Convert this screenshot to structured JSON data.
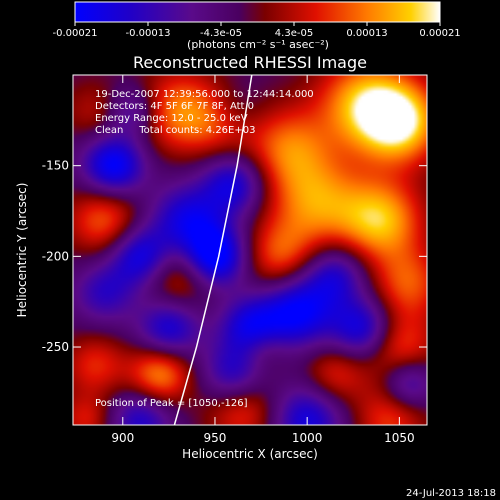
{
  "colorbar": {
    "ticks": [
      "-0.00021",
      "-0.00013",
      "-4.3e-05",
      "4.3e-05",
      "0.00013",
      "0.00021"
    ],
    "units": "(photons cm⁻² s⁻¹ asec⁻²)",
    "min": -0.00021,
    "max": 0.00021
  },
  "chart_data": {
    "type": "heatmap",
    "title": "Reconstructed RHESSI Image",
    "xlabel": "Heliocentric X (arcsec)",
    "ylabel": "Heliocentric Y (arcsec)",
    "xlim": [
      873,
      1065
    ],
    "ylim": [
      -293,
      -100
    ],
    "xticks": [
      900,
      950,
      1000,
      1050
    ],
    "yticks": [
      -150,
      -200,
      -250
    ],
    "annotations": [
      "19-Dec-2007 12:39:56.000 to 12:44:14.000",
      "Detectors: 4F 5F 6F 7F 8F, Att 0",
      "Energy Range: 12.0 - 25.0 keV",
      "Clean     Total counts: 4.26E+03"
    ],
    "peak_label": "Position of Peak = [1050,-126]",
    "peak": [
      1050,
      -126
    ],
    "limb_curve": [
      [
        928,
        -293
      ],
      [
        940,
        -250
      ],
      [
        952,
        -200
      ],
      [
        962,
        -150
      ],
      [
        970,
        -100
      ]
    ],
    "blobs": [
      {
        "x": 1050,
        "y": -126,
        "v": 1.0,
        "s": 16
      },
      {
        "x": 1030,
        "y": -115,
        "v": 0.75,
        "s": 18
      },
      {
        "x": 1040,
        "y": -180,
        "v": 0.85,
        "s": 16
      },
      {
        "x": 1005,
        "y": -170,
        "v": 0.7,
        "s": 18
      },
      {
        "x": 990,
        "y": -140,
        "v": 0.6,
        "s": 16
      },
      {
        "x": 985,
        "y": -200,
        "v": 0.55,
        "s": 14
      },
      {
        "x": 1055,
        "y": -215,
        "v": 0.55,
        "s": 14
      },
      {
        "x": 1050,
        "y": -250,
        "v": 0.55,
        "s": 14
      },
      {
        "x": 1015,
        "y": -265,
        "v": 0.45,
        "s": 12
      },
      {
        "x": 1045,
        "y": -290,
        "v": 0.5,
        "s": 14
      },
      {
        "x": 930,
        "y": -120,
        "v": 0.65,
        "s": 16
      },
      {
        "x": 955,
        "y": -125,
        "v": 0.55,
        "s": 14
      },
      {
        "x": 890,
        "y": -180,
        "v": 0.6,
        "s": 14
      },
      {
        "x": 930,
        "y": -210,
        "v": 0.5,
        "s": 14
      },
      {
        "x": 920,
        "y": -265,
        "v": 0.75,
        "s": 12
      },
      {
        "x": 885,
        "y": -260,
        "v": 0.45,
        "s": 12
      },
      {
        "x": 965,
        "y": -285,
        "v": 0.5,
        "s": 14
      },
      {
        "x": 975,
        "y": -250,
        "v": 0.35,
        "s": 10
      },
      {
        "x": 885,
        "y": -120,
        "v": 0.3,
        "s": 12
      },
      {
        "x": 880,
        "y": -290,
        "v": 0.4,
        "s": 10
      },
      {
        "x": 895,
        "y": -150,
        "v": -0.9,
        "s": 12
      },
      {
        "x": 950,
        "y": -200,
        "v": -1.0,
        "s": 12
      },
      {
        "x": 910,
        "y": -200,
        "v": -0.8,
        "s": 12
      },
      {
        "x": 935,
        "y": -180,
        "v": -0.7,
        "s": 14
      },
      {
        "x": 960,
        "y": -160,
        "v": -0.7,
        "s": 12
      },
      {
        "x": 925,
        "y": -240,
        "v": -0.7,
        "s": 12
      },
      {
        "x": 995,
        "y": -230,
        "v": -0.85,
        "s": 14
      },
      {
        "x": 970,
        "y": -240,
        "v": -0.8,
        "s": 12
      },
      {
        "x": 1030,
        "y": -240,
        "v": -0.75,
        "s": 12
      },
      {
        "x": 1015,
        "y": -210,
        "v": -0.6,
        "s": 12
      },
      {
        "x": 1000,
        "y": -290,
        "v": -0.7,
        "s": 14
      },
      {
        "x": 960,
        "y": -265,
        "v": -0.6,
        "s": 12
      },
      {
        "x": 1055,
        "y": -270,
        "v": -0.6,
        "s": 10
      },
      {
        "x": 890,
        "y": -220,
        "v": -0.5,
        "s": 12
      },
      {
        "x": 910,
        "y": -290,
        "v": -0.6,
        "s": 12
      },
      {
        "x": 960,
        "y": -120,
        "v": -0.4,
        "s": 12
      },
      {
        "x": 905,
        "y": -120,
        "v": -0.5,
        "s": 10
      }
    ]
  },
  "footer_date": "24-Jul-2013 18:18"
}
